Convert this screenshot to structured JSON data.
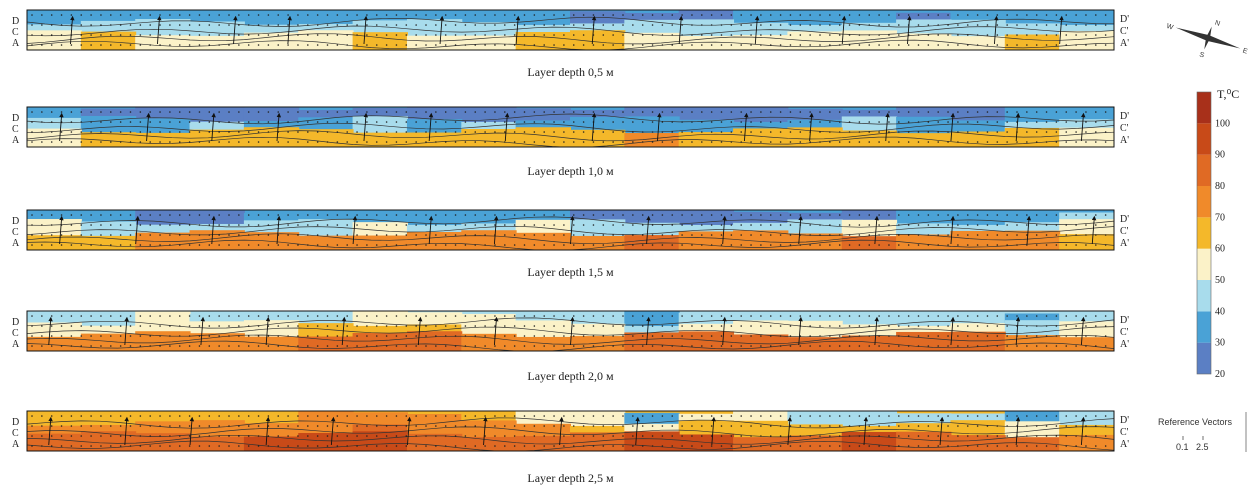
{
  "colors": {
    "c20": "#5b7fc4",
    "c30": "#4aa2d6",
    "c40": "#a8dcec",
    "c50": "#fbf2c8",
    "c60": "#f4b82a",
    "c70": "#f08a2a",
    "c80": "#e06a24",
    "c90": "#c84a18",
    "c100": "#a8301a"
  },
  "chart_data": {
    "type": "heatmap",
    "description_units": "temperature T, °C",
    "colorbar": {
      "title": "T,⁰C",
      "ticks": [
        20,
        30,
        40,
        50,
        60,
        70,
        80,
        90,
        100
      ],
      "range": [
        20,
        110
      ]
    },
    "left_labels": [
      "D",
      "C",
      "A"
    ],
    "right_labels": [
      "D'",
      "C'",
      "A'"
    ],
    "reference_vectors": {
      "title": "Reference Vectors",
      "values": [
        "0.1",
        "2.5"
      ]
    },
    "compass": {
      "labels": [
        "N",
        "E",
        "S",
        "W"
      ]
    },
    "panels": [
      {
        "title": "Layer depth 0,5 м",
        "vectors": [
          0.04,
          0.12,
          0.19,
          0.24,
          0.31,
          0.38,
          0.45,
          0.52,
          0.6,
          0.67,
          0.75,
          0.81,
          0.89,
          0.95
        ],
        "top_band": [
          30,
          30,
          35,
          35,
          30,
          30,
          30,
          30,
          35,
          35,
          25,
          25,
          25,
          35,
          35,
          30,
          25,
          30,
          35,
          30
        ],
        "mid_band": [
          45,
          40,
          40,
          45,
          45,
          40,
          40,
          45,
          40,
          45,
          40,
          40,
          45,
          45,
          40,
          45,
          40,
          40,
          45,
          45
        ],
        "bottom_band": [
          55,
          60,
          55,
          55,
          55,
          55,
          60,
          55,
          55,
          65,
          60,
          55,
          55,
          55,
          55,
          55,
          55,
          55,
          60,
          55
        ]
      },
      {
        "title": "Layer depth 1,0 м",
        "vectors": [
          0.03,
          0.11,
          0.17,
          0.23,
          0.31,
          0.37,
          0.44,
          0.52,
          0.58,
          0.66,
          0.72,
          0.79,
          0.85,
          0.91,
          0.97
        ],
        "top_band": [
          30,
          25,
          25,
          25,
          25,
          25,
          25,
          25,
          25,
          25,
          20,
          20,
          20,
          20,
          25,
          25,
          25,
          25,
          30,
          30
        ],
        "mid_band": [
          40,
          35,
          35,
          40,
          35,
          35,
          40,
          35,
          40,
          35,
          35,
          35,
          35,
          35,
          35,
          40,
          35,
          35,
          40,
          40
        ],
        "bottom_band": [
          55,
          60,
          60,
          60,
          60,
          65,
          60,
          60,
          65,
          65,
          65,
          70,
          65,
          65,
          60,
          60,
          65,
          60,
          60,
          55
        ]
      },
      {
        "title": "Layer depth 1,5 м",
        "vectors": [
          0.03,
          0.1,
          0.17,
          0.23,
          0.3,
          0.37,
          0.43,
          0.5,
          0.57,
          0.64,
          0.71,
          0.78,
          0.85,
          0.92,
          0.98
        ],
        "top_band": [
          35,
          30,
          25,
          25,
          30,
          30,
          30,
          35,
          30,
          30,
          25,
          25,
          25,
          25,
          25,
          25,
          30,
          30,
          30,
          40
        ],
        "mid_band": [
          50,
          45,
          45,
          45,
          45,
          45,
          50,
          45,
          45,
          50,
          45,
          45,
          45,
          45,
          45,
          50,
          45,
          45,
          45,
          50
        ],
        "bottom_band": [
          60,
          65,
          70,
          70,
          70,
          75,
          70,
          70,
          75,
          75,
          75,
          80,
          75,
          75,
          75,
          80,
          75,
          75,
          70,
          60
        ]
      },
      {
        "title": "Layer depth 2,0 м",
        "vectors": [
          0.02,
          0.09,
          0.16,
          0.22,
          0.29,
          0.36,
          0.43,
          0.5,
          0.57,
          0.64,
          0.71,
          0.78,
          0.85,
          0.91,
          0.97
        ],
        "top_band": [
          45,
          45,
          50,
          45,
          45,
          45,
          50,
          55,
          50,
          45,
          40,
          30,
          40,
          40,
          45,
          45,
          45,
          40,
          30,
          40
        ],
        "mid_band": [
          55,
          55,
          55,
          55,
          55,
          60,
          60,
          60,
          55,
          55,
          50,
          45,
          50,
          55,
          50,
          55,
          50,
          50,
          45,
          55
        ],
        "bottom_band": [
          70,
          75,
          75,
          75,
          75,
          80,
          80,
          80,
          75,
          75,
          75,
          85,
          80,
          80,
          80,
          85,
          80,
          80,
          75,
          70
        ]
      },
      {
        "title": "Layer depth 2,5 м",
        "vectors": [
          0.02,
          0.09,
          0.15,
          0.22,
          0.28,
          0.35,
          0.42,
          0.49,
          0.56,
          0.63,
          0.7,
          0.77,
          0.84,
          0.91,
          0.97
        ],
        "top_band": [
          60,
          60,
          65,
          65,
          65,
          70,
          70,
          70,
          60,
          55,
          50,
          35,
          50,
          50,
          45,
          45,
          45,
          40,
          35,
          45
        ],
        "mid_band": [
          70,
          70,
          75,
          75,
          75,
          75,
          80,
          75,
          70,
          70,
          65,
          55,
          65,
          65,
          60,
          65,
          60,
          60,
          55,
          65
        ],
        "bottom_band": [
          80,
          85,
          85,
          85,
          90,
          90,
          90,
          85,
          85,
          80,
          80,
          90,
          90,
          85,
          85,
          90,
          85,
          85,
          80,
          75
        ]
      }
    ]
  }
}
